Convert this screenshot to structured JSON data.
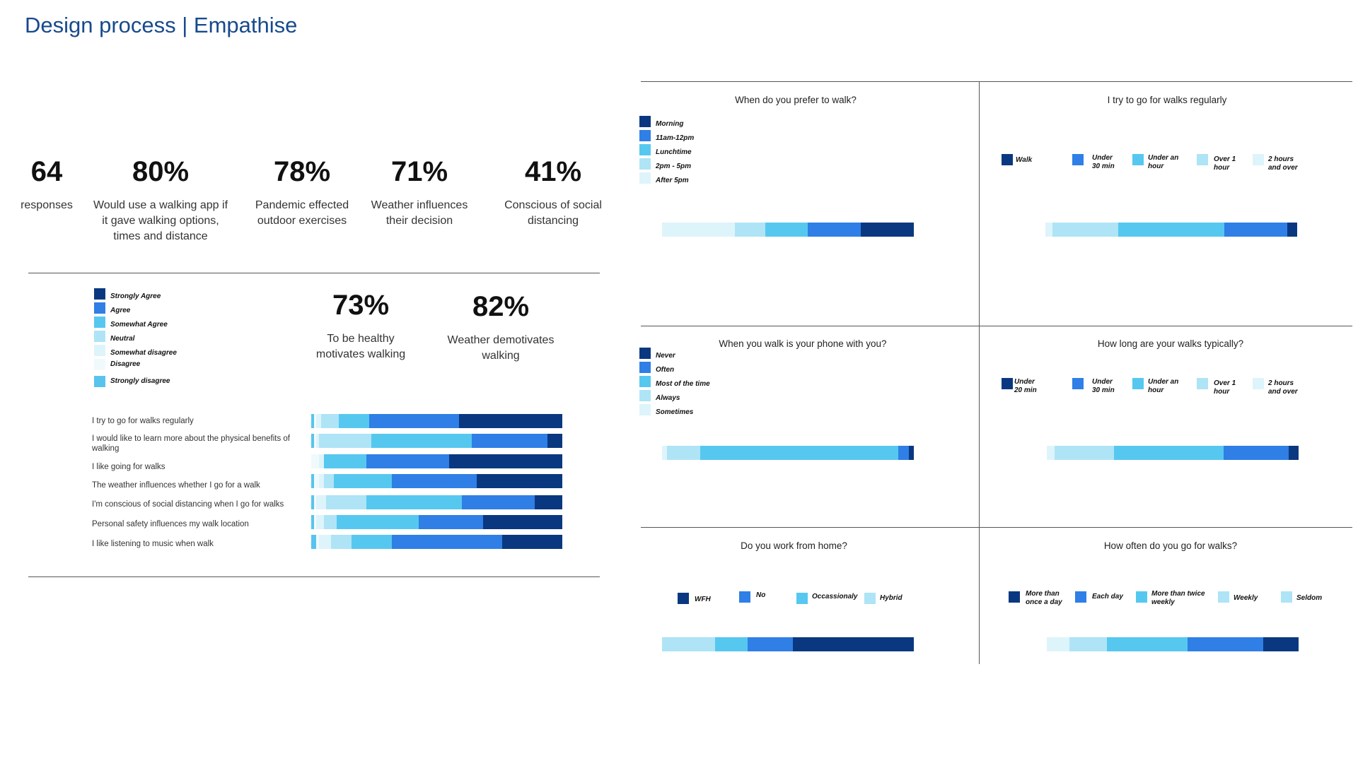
{
  "title": "Design process | Empathise",
  "colors": {
    "c1": "#0a3880",
    "c2": "#2f7fe6",
    "c3": "#56c8f0",
    "c4": "#aee4f6",
    "c5": "#def4fb",
    "c6": "#f0fafd",
    "c7": "#58c4ee"
  },
  "stats": [
    {
      "value": "64",
      "label": "responses"
    },
    {
      "value": "80%",
      "label": "Would use a walking app if it gave walking options, times and distance"
    },
    {
      "value": "78%",
      "label": "Pandemic effected outdoor exercises"
    },
    {
      "value": "71%",
      "label": "Weather influences their decision"
    },
    {
      "value": "41%",
      "label": "Conscious of social distancing"
    },
    {
      "value": "73%",
      "label": "To be healthy motivates walking"
    },
    {
      "value": "82%",
      "label": "Weather demotivates walking"
    }
  ],
  "chart_data": [
    {
      "type": "bar",
      "orientation": "horizontal-stacked",
      "legend": [
        "Strongly Agree",
        "Agree",
        "Somewhat Agree",
        "Neutral",
        "Somewhat disagree",
        "Disagree",
        "Strongly disagree"
      ],
      "categories": [
        "I try to go for walks regularly",
        "I would like to learn more about the physical benefits of walking",
        "I like going for walks",
        "The weather influences whether I go for a walk",
        "I'm conscious of social distancing when I go for walks",
        "Personal safety influences my walk location",
        "I like listening to music when walk"
      ],
      "series": [
        {
          "name": "Strongly disagree",
          "values": [
            1,
            1,
            0,
            1,
            1,
            1,
            2
          ]
        },
        {
          "name": "Disagree",
          "values": [
            1,
            1,
            3,
            2,
            1,
            1,
            1
          ]
        },
        {
          "name": "Somewhat disagree",
          "values": [
            2,
            1,
            2,
            2,
            4,
            3,
            5
          ]
        },
        {
          "name": "Neutral",
          "values": [
            7,
            21,
            0,
            4,
            16,
            5,
            8
          ]
        },
        {
          "name": "Somewhat Agree",
          "values": [
            12,
            40,
            17,
            23,
            38,
            32,
            16
          ]
        },
        {
          "name": "Agree",
          "values": [
            36,
            30,
            33,
            34,
            29,
            25,
            44
          ]
        },
        {
          "name": "Strongly Agree",
          "values": [
            41,
            6,
            45,
            34,
            11,
            31,
            24
          ]
        }
      ]
    },
    {
      "type": "bar",
      "orientation": "horizontal-stacked",
      "title": "When do you prefer to walk?",
      "legend": [
        "Morning",
        "11am-12pm",
        "Lunchtime",
        "2pm - 5pm",
        "After 5pm"
      ],
      "series": [
        {
          "name": "After 5pm",
          "values": [
            29
          ]
        },
        {
          "name": "2pm - 5pm",
          "values": [
            12
          ]
        },
        {
          "name": "Lunchtime",
          "values": [
            17
          ]
        },
        {
          "name": "11am-12pm",
          "values": [
            21
          ]
        },
        {
          "name": "Morning",
          "values": [
            21
          ]
        }
      ]
    },
    {
      "type": "bar",
      "orientation": "horizontal-stacked",
      "title": "I try to go for walks regularly",
      "legend": [
        "Walk",
        "Under 30 min",
        "Under an hour",
        "Over 1 hour",
        "2 hours and over"
      ],
      "series": [
        {
          "name": "2 hours and over",
          "values": [
            3
          ]
        },
        {
          "name": "Over 1 hour",
          "values": [
            27
          ]
        },
        {
          "name": "Under an hour",
          "values": [
            44
          ]
        },
        {
          "name": "Under 30 min",
          "values": [
            26
          ]
        },
        {
          "name": "Walk",
          "values": [
            4
          ]
        }
      ]
    },
    {
      "type": "bar",
      "orientation": "horizontal-stacked",
      "title": "When you walk is your phone with you?",
      "legend": [
        "Never",
        "Often",
        "Most of the time",
        "Always",
        "Sometimes"
      ],
      "series": [
        {
          "name": "Sometimes",
          "values": [
            2
          ]
        },
        {
          "name": "Always",
          "values": [
            13
          ]
        },
        {
          "name": "Most of the time",
          "values": [
            78
          ]
        },
        {
          "name": "Often",
          "values": [
            4
          ]
        },
        {
          "name": "Never",
          "values": [
            2
          ]
        }
      ]
    },
    {
      "type": "bar",
      "orientation": "horizontal-stacked",
      "title": "How long are your walks typically?",
      "legend": [
        "Under 20 min",
        "Under 30 min",
        "Under an hour",
        "Over 1 hour",
        "2 hours and over"
      ],
      "series": [
        {
          "name": "2 hours and over",
          "values": [
            3
          ]
        },
        {
          "name": "Over 1 hour",
          "values": [
            24
          ]
        },
        {
          "name": "Under an hour",
          "values": [
            44
          ]
        },
        {
          "name": "Under 30 min",
          "values": [
            26
          ]
        },
        {
          "name": "Under 20 min",
          "values": [
            4
          ]
        }
      ]
    },
    {
      "type": "bar",
      "orientation": "horizontal-stacked",
      "title": "Do you work from home?",
      "legend": [
        "WFH",
        "No",
        "Occassionaly",
        "Hybrid"
      ],
      "series": [
        {
          "name": "Hybrid",
          "values": [
            21
          ]
        },
        {
          "name": "Occassionaly",
          "values": [
            13
          ]
        },
        {
          "name": "No",
          "values": [
            18
          ]
        },
        {
          "name": "WFH",
          "values": [
            48
          ]
        }
      ]
    },
    {
      "type": "bar",
      "orientation": "horizontal-stacked",
      "title": "How often do you go for walks?",
      "legend": [
        "More than once a day",
        "Each day",
        "More than twice weekly",
        "Weekly",
        "Seldom"
      ],
      "series": [
        {
          "name": "Seldom",
          "values": [
            9
          ]
        },
        {
          "name": "Weekly",
          "values": [
            15
          ]
        },
        {
          "name": "More than twice weekly",
          "values": [
            32
          ]
        },
        {
          "name": "Each day",
          "values": [
            30
          ]
        },
        {
          "name": "More than once a day",
          "values": [
            14
          ]
        }
      ]
    }
  ]
}
